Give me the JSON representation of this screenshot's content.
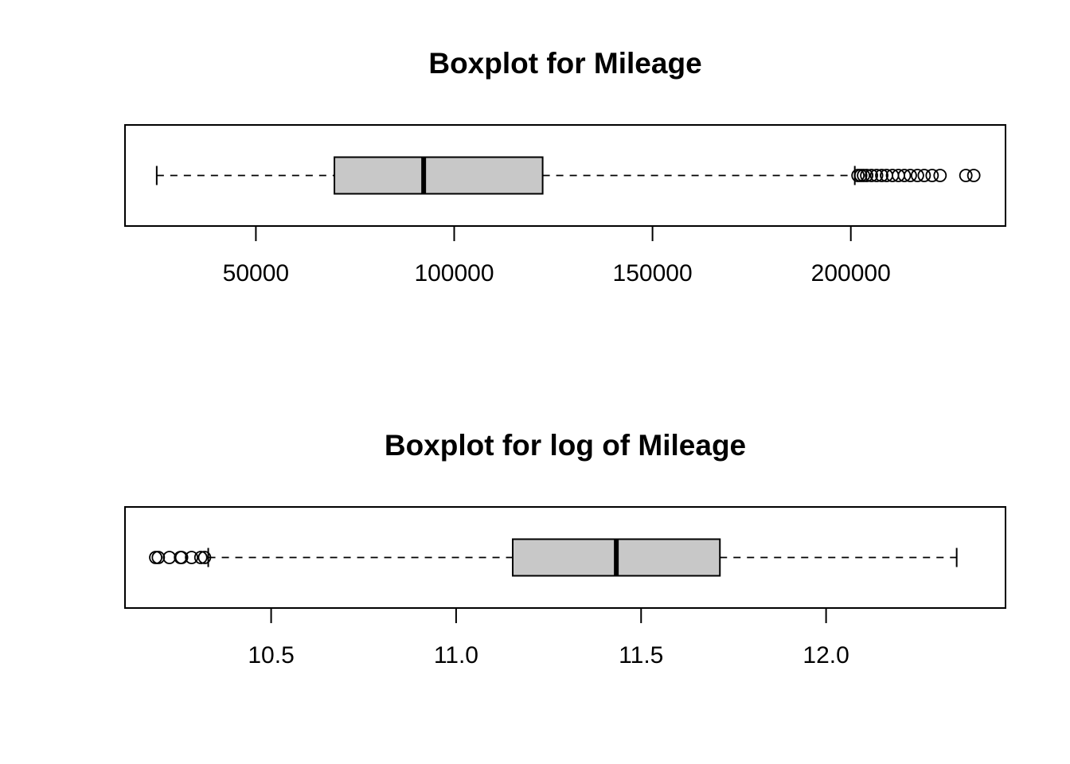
{
  "chart_data": [
    {
      "type": "boxplot",
      "orientation": "horizontal",
      "title": "Boxplot for Mileage",
      "xlabel": "",
      "ylabel": "",
      "xlim": [
        17000,
        239000
      ],
      "ticks": [
        50000,
        100000,
        150000,
        200000
      ],
      "tick_labels": [
        "50000",
        "100000",
        "150000",
        "200000"
      ],
      "box": {
        "whisker_low": 25000,
        "q1": 69800,
        "median": 92300,
        "q3": 122300,
        "whisker_high": 201000
      },
      "outliers": [
        201800,
        202500,
        203200,
        204000,
        205200,
        206500,
        207800,
        209000,
        210500,
        212000,
        213500,
        215000,
        216800,
        218500,
        220500,
        222500,
        229000,
        231000
      ],
      "fill_color": "#c8c8c8",
      "grid": false
    },
    {
      "type": "boxplot",
      "orientation": "horizontal",
      "title": "Boxplot for log of Mileage",
      "xlabel": "",
      "ylabel": "",
      "xlim": [
        10.105,
        12.485
      ],
      "ticks": [
        10.5,
        11.0,
        11.5,
        12.0
      ],
      "tick_labels": [
        "10.5",
        "11.0",
        "11.5",
        "12.0"
      ],
      "box": {
        "whisker_low": 10.33,
        "q1": 11.153,
        "median": 11.433,
        "q3": 11.713,
        "whisker_high": 12.353
      },
      "outliers": [
        10.188,
        10.195,
        10.225,
        10.255,
        10.258,
        10.285,
        10.31,
        10.32
      ],
      "fill_color": "#c8c8c8",
      "grid": false
    }
  ]
}
